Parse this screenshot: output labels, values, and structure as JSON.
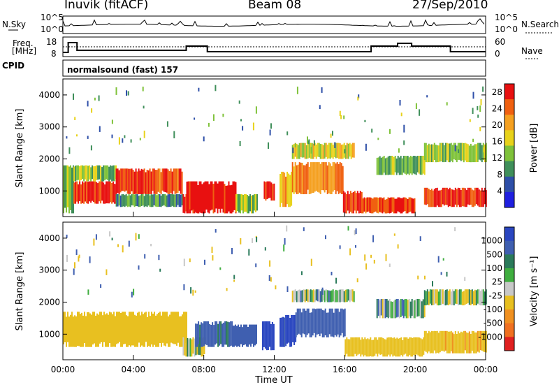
{
  "header": {
    "station": "Inuvik (fitACF)",
    "beam": "Beam 08",
    "date": "27/Sep/2010"
  },
  "strip_labels": {
    "nsky": "N.Sky",
    "nsearch": "N.Search",
    "freq_line1": "Freq.",
    "freq_line2": "[MHz]",
    "nave": "Nave",
    "cpid": "CPID",
    "cpid_value": "normalsound (fast) 157"
  },
  "strip_ticks": {
    "nsky_left": [
      "10^5",
      "10^0"
    ],
    "nsky_right": [
      "10^5",
      "10^0"
    ],
    "freq_left": [
      "18",
      "8"
    ],
    "nave_right": [
      "60",
      "0"
    ]
  },
  "colors": {
    "power_scale": [
      "#1f1fe0",
      "#2e4fa8",
      "#3f8f5a",
      "#7fc23a",
      "#e8d21a",
      "#f5a020",
      "#f06010",
      "#e81010"
    ],
    "velocity_scale": [
      "#2a46c0",
      "#3f5fb0",
      "#2a7a5a",
      "#3fae3f",
      "#c8c8c8",
      "#e8c020",
      "#f09020",
      "#f07020",
      "#e02020"
    ]
  },
  "chart_data": [
    {
      "type": "heatmap",
      "name": "power",
      "ylabel": "Slant Range [km]",
      "yticks": [
        "1000",
        "2000",
        "3000",
        "4000"
      ],
      "ylim": [
        200,
        4500
      ],
      "xticks": [
        "00:00",
        "04:00",
        "08:00",
        "12:00",
        "16:00",
        "20:00",
        "00:00"
      ],
      "xlim_hours": [
        0,
        24
      ],
      "colorbar_label": "Power [dB]",
      "colorbar_ticks": [
        "4",
        "8",
        "12",
        "16",
        "20",
        "24",
        "28"
      ],
      "colorbar_range": [
        0,
        30
      ],
      "regions": [
        {
          "t0": 0.0,
          "t1": 0.6,
          "r0": 300,
          "r1": 1800,
          "v": 12
        },
        {
          "t0": 0.6,
          "t1": 3.0,
          "r0": 600,
          "r1": 1300,
          "v": 28
        },
        {
          "t0": 0.6,
          "t1": 3.0,
          "r0": 1300,
          "r1": 1800,
          "v": 14
        },
        {
          "t0": 3.0,
          "t1": 6.8,
          "r0": 900,
          "r1": 1700,
          "v": 26
        },
        {
          "t0": 3.0,
          "t1": 6.8,
          "r0": 500,
          "r1": 900,
          "v": 10
        },
        {
          "t0": 6.8,
          "t1": 8.0,
          "r0": 300,
          "r1": 900,
          "v": 28
        },
        {
          "t0": 7.0,
          "t1": 9.8,
          "r0": 300,
          "r1": 1300,
          "v": 29
        },
        {
          "t0": 9.8,
          "t1": 11.0,
          "r0": 300,
          "r1": 900,
          "v": 14
        },
        {
          "t0": 11.4,
          "t1": 12.0,
          "r0": 700,
          "r1": 1300,
          "v": 27
        },
        {
          "t0": 12.3,
          "t1": 13.0,
          "r0": 500,
          "r1": 1600,
          "v": 20
        },
        {
          "t0": 13.0,
          "t1": 15.9,
          "r0": 900,
          "r1": 1900,
          "v": 22
        },
        {
          "t0": 15.9,
          "t1": 17.0,
          "r0": 300,
          "r1": 1000,
          "v": 27
        },
        {
          "t0": 17.0,
          "t1": 20.0,
          "r0": 300,
          "r1": 800,
          "v": 26
        },
        {
          "t0": 17.8,
          "t1": 20.5,
          "r0": 1500,
          "r1": 2100,
          "v": 12
        },
        {
          "t0": 13.0,
          "t1": 16.5,
          "r0": 2000,
          "r1": 2500,
          "v": 16
        },
        {
          "t0": 20.5,
          "t1": 24.0,
          "r0": 500,
          "r1": 1100,
          "v": 27
        },
        {
          "t0": 20.5,
          "t1": 24.0,
          "r0": 1900,
          "r1": 2500,
          "v": 14
        }
      ]
    },
    {
      "type": "heatmap",
      "name": "velocity",
      "ylabel": "Slant Range [km]",
      "yticks": [
        "1000",
        "2000",
        "3000",
        "4000"
      ],
      "ylim": [
        200,
        4500
      ],
      "xticks": [
        "00:00",
        "04:00",
        "08:00",
        "12:00",
        "16:00",
        "20:00",
        "00:00"
      ],
      "xlim_hours": [
        0,
        24
      ],
      "xlabel": "Time UT",
      "colorbar_label": "Velocity [m s⁻¹]",
      "colorbar_ticks": [
        "1000",
        "500",
        "100",
        "25",
        "-25",
        "-100",
        "-500",
        "-1000"
      ],
      "colorbar_range": [
        -1000,
        1000
      ],
      "regions": [
        {
          "t0": 0.0,
          "t1": 7.0,
          "r0": 600,
          "r1": 1700,
          "v": -300
        },
        {
          "t0": 6.8,
          "t1": 8.0,
          "r0": 300,
          "r1": 900,
          "v": -50
        },
        {
          "t0": 7.5,
          "t1": 9.6,
          "r0": 600,
          "r1": 1400,
          "v": 200
        },
        {
          "t0": 9.6,
          "t1": 11.0,
          "r0": 600,
          "r1": 1300,
          "v": 300
        },
        {
          "t0": 11.3,
          "t1": 12.0,
          "r0": 500,
          "r1": 1400,
          "v": 900
        },
        {
          "t0": 12.3,
          "t1": 13.2,
          "r0": 600,
          "r1": 1600,
          "v": 600
        },
        {
          "t0": 13.2,
          "t1": 16.0,
          "r0": 900,
          "r1": 1800,
          "v": 250
        },
        {
          "t0": 13.0,
          "t1": 16.5,
          "r0": 2000,
          "r1": 2400,
          "v": 0
        },
        {
          "t0": 16.0,
          "t1": 20.5,
          "r0": 300,
          "r1": 900,
          "v": -300
        },
        {
          "t0": 17.8,
          "t1": 20.5,
          "r0": 1500,
          "r1": 2100,
          "v": 0
        },
        {
          "t0": 20.5,
          "t1": 24.0,
          "r0": 400,
          "r1": 1100,
          "v": -400
        },
        {
          "t0": 20.5,
          "t1": 24.0,
          "r0": 1900,
          "r1": 2400,
          "v": -60
        }
      ]
    }
  ]
}
